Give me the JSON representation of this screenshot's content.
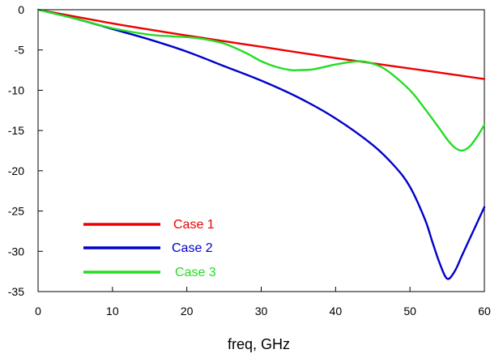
{
  "chart_data": {
    "type": "line",
    "title": "",
    "xlabel": "freq, GHz",
    "ylabel": "",
    "xlim": [
      0,
      60
    ],
    "ylim": [
      -35,
      0
    ],
    "xticks": [
      "0",
      "10",
      "20",
      "30",
      "40",
      "50",
      "60"
    ],
    "yticks": [
      "0",
      "-5",
      "-10",
      "-15",
      "-20",
      "-25",
      "-30",
      "-35"
    ],
    "grid": false,
    "legend_position": "lower-left",
    "series": [
      {
        "name": "Case 1",
        "color": "#ee0000",
        "x": [
          0,
          10,
          20,
          30,
          40,
          50,
          60
        ],
        "y": [
          0,
          -1.7,
          -3.2,
          -4.6,
          -6.0,
          -7.3,
          -8.6
        ]
      },
      {
        "name": "Case 2",
        "color": "#0000cc",
        "x": [
          0,
          5,
          10,
          15,
          20,
          25,
          30,
          35,
          40,
          45,
          48,
          50,
          52,
          53,
          54,
          55,
          56,
          57,
          58,
          59,
          60
        ],
        "y": [
          0,
          -1.1,
          -2.4,
          -3.7,
          -5.2,
          -7.0,
          -8.8,
          -10.9,
          -13.5,
          -16.8,
          -19.5,
          -22.0,
          -26.0,
          -28.8,
          -31.5,
          -33.4,
          -32.5,
          -30.5,
          -28.5,
          -26.5,
          -24.5
        ]
      },
      {
        "name": "Case 3",
        "color": "#22dd22",
        "x": [
          0,
          5,
          10,
          15,
          18,
          20,
          22,
          25,
          28,
          30,
          32,
          34,
          35,
          37,
          40,
          43,
          45,
          47,
          50,
          52,
          54,
          55,
          56,
          57,
          58,
          59,
          60
        ],
        "y": [
          0,
          -1.1,
          -2.3,
          -3.1,
          -3.3,
          -3.4,
          -3.6,
          -4.2,
          -5.4,
          -6.4,
          -7.1,
          -7.5,
          -7.5,
          -7.4,
          -6.8,
          -6.4,
          -6.7,
          -7.6,
          -10.0,
          -12.3,
          -14.8,
          -16.1,
          -17.1,
          -17.5,
          -17.0,
          -15.8,
          -14.3
        ]
      }
    ]
  }
}
